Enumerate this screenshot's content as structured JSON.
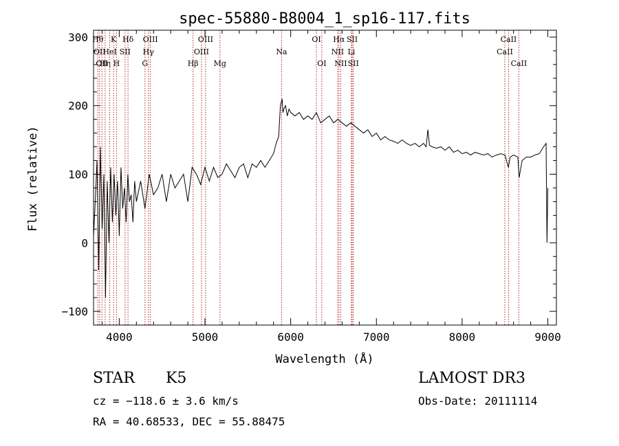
{
  "chart_data": {
    "type": "line",
    "title": "spec-55880-B8004_1_sp16-117.fits",
    "xlabel": "Wavelength (Å)",
    "ylabel": "Flux (relative)",
    "xlim": [
      3700,
      9100
    ],
    "ylim": [
      -120,
      310
    ],
    "xticks": [
      4000,
      5000,
      6000,
      7000,
      8000,
      9000
    ],
    "xtick_labels": [
      "4000",
      "5000",
      "6000",
      "7000",
      "8000",
      "9000"
    ],
    "yticks": [
      -100,
      0,
      100,
      200,
      300
    ],
    "ytick_labels": [
      "−100",
      "0",
      "100",
      "200",
      "300"
    ],
    "grid": false,
    "line_color": "#000000",
    "marker_color": "#b22222",
    "series": [
      {
        "name": "flux",
        "x": [
          3700,
          3720,
          3740,
          3760,
          3780,
          3800,
          3820,
          3840,
          3860,
          3880,
          3900,
          3920,
          3940,
          3960,
          3980,
          4000,
          4020,
          4040,
          4060,
          4080,
          4100,
          4120,
          4140,
          4160,
          4180,
          4200,
          4250,
          4300,
          4350,
          4400,
          4450,
          4500,
          4550,
          4600,
          4650,
          4700,
          4750,
          4800,
          4850,
          4900,
          4950,
          5000,
          5050,
          5100,
          5150,
          5200,
          5250,
          5300,
          5350,
          5400,
          5450,
          5500,
          5550,
          5600,
          5650,
          5700,
          5750,
          5800,
          5830,
          5860,
          5880,
          5900,
          5910,
          5920,
          5940,
          5960,
          5980,
          6000,
          6050,
          6100,
          6150,
          6200,
          6250,
          6300,
          6350,
          6400,
          6450,
          6500,
          6550,
          6600,
          6650,
          6700,
          6750,
          6800,
          6850,
          6900,
          6950,
          7000,
          7050,
          7100,
          7150,
          7200,
          7250,
          7300,
          7350,
          7400,
          7450,
          7500,
          7550,
          7580,
          7600,
          7620,
          7650,
          7700,
          7750,
          7800,
          7850,
          7900,
          7950,
          8000,
          8050,
          8100,
          8150,
          8200,
          8250,
          8300,
          8350,
          8400,
          8450,
          8500,
          8540,
          8560,
          8600,
          8650,
          8665,
          8700,
          8750,
          8800,
          8850,
          8900,
          8950,
          8980,
          8990,
          9000
        ],
        "y": [
          10,
          60,
          120,
          -40,
          140,
          20,
          100,
          -80,
          90,
          0,
          110,
          30,
          100,
          40,
          90,
          10,
          110,
          50,
          80,
          30,
          100,
          60,
          70,
          30,
          90,
          60,
          90,
          50,
          100,
          70,
          80,
          100,
          60,
          100,
          80,
          90,
          100,
          60,
          110,
          100,
          85,
          110,
          90,
          110,
          95,
          100,
          115,
          105,
          95,
          110,
          115,
          95,
          115,
          110,
          120,
          110,
          120,
          130,
          145,
          155,
          200,
          210,
          190,
          195,
          200,
          185,
          195,
          190,
          185,
          190,
          180,
          185,
          180,
          190,
          175,
          180,
          185,
          175,
          180,
          175,
          170,
          175,
          170,
          165,
          160,
          165,
          155,
          160,
          150,
          155,
          150,
          148,
          145,
          150,
          145,
          142,
          145,
          140,
          145,
          140,
          165,
          142,
          140,
          138,
          140,
          135,
          140,
          132,
          135,
          130,
          132,
          128,
          132,
          130,
          128,
          130,
          125,
          128,
          130,
          128,
          110,
          125,
          128,
          125,
          95,
          120,
          125,
          125,
          128,
          130,
          140,
          145,
          0,
          80
        ]
      }
    ],
    "line_markers": [
      {
        "x": 3750,
        "label": "Hθ",
        "row": 1
      },
      {
        "x": 3770,
        "label": "OII",
        "row": 2
      },
      {
        "x": 3798,
        "label": "OII",
        "row": 3
      },
      {
        "x": 3835,
        "label": "Hη",
        "row": 3
      },
      {
        "x": 3889,
        "label": "HeI",
        "row": 2
      },
      {
        "x": 3934,
        "label": "K",
        "row": 1
      },
      {
        "x": 3968,
        "label": "H",
        "row": 3
      },
      {
        "x": 4068,
        "label": "SII",
        "row": 2
      },
      {
        "x": 4102,
        "label": "Hδ",
        "row": 1
      },
      {
        "x": 4300,
        "label": "G",
        "row": 3
      },
      {
        "x": 4340,
        "label": "Hγ",
        "row": 2
      },
      {
        "x": 4363,
        "label": "OIII",
        "row": 1
      },
      {
        "x": 4861,
        "label": "Hβ",
        "row": 3
      },
      {
        "x": 4959,
        "label": "OIII",
        "row": 2
      },
      {
        "x": 5007,
        "label": "OIII",
        "row": 1
      },
      {
        "x": 5175,
        "label": "Mg",
        "row": 3
      },
      {
        "x": 5894,
        "label": "Na",
        "row": 2
      },
      {
        "x": 6300,
        "label": "OI",
        "row": 1
      },
      {
        "x": 6363,
        "label": "OI",
        "row": 3
      },
      {
        "x": 6548,
        "label": "NII",
        "row": 2
      },
      {
        "x": 6563,
        "label": "Hα",
        "row": 1
      },
      {
        "x": 6584,
        "label": "NII",
        "row": 3
      },
      {
        "x": 6708,
        "label": "Li",
        "row": 2
      },
      {
        "x": 6717,
        "label": "SII",
        "row": 1
      },
      {
        "x": 6731,
        "label": "SII",
        "row": 3
      },
      {
        "x": 8498,
        "label": "CaII",
        "row": 2
      },
      {
        "x": 8542,
        "label": "CaII",
        "row": 1
      },
      {
        "x": 8662,
        "label": "CaII",
        "row": 3
      }
    ]
  },
  "footer": {
    "object_type": "STAR",
    "subclass": "K5",
    "survey": "LAMOST DR3",
    "cz": "cz = −118.6 ± 3.6 km/s",
    "obs_date": "Obs-Date: 20111114",
    "radec": "RA =  40.68533, DEC =  55.88475"
  }
}
